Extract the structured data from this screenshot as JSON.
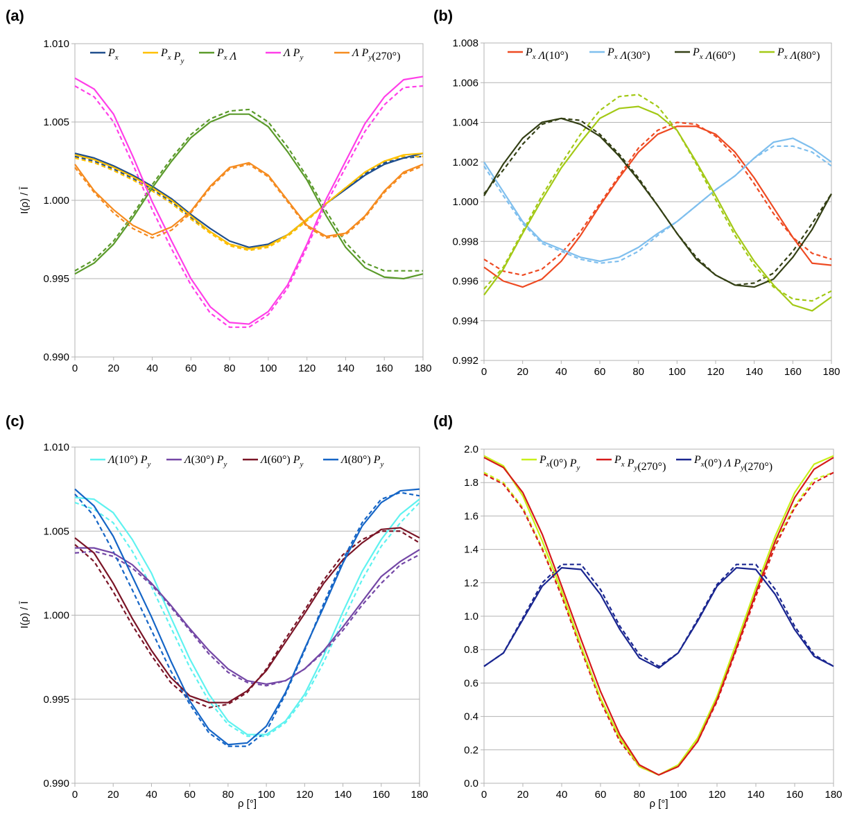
{
  "chart_data": [
    {
      "panel_label": "(a)",
      "type": "line",
      "xlabel": "",
      "ylabel": "I(ρ) / Ī",
      "xlim": [
        0,
        180
      ],
      "ylim": [
        0.99,
        1.01
      ],
      "x_ticks": [
        "0",
        "20",
        "40",
        "60",
        "80",
        "100",
        "120",
        "140",
        "160",
        "180"
      ],
      "y_ticks": [
        "0.990",
        "0.995",
        "1.000",
        "1.005",
        "1.010"
      ],
      "grid": "horizontal",
      "legend_position": "top",
      "legend_note": "solid = measured, dashed = predicted (no legend entry for style)",
      "x": [
        0,
        10,
        20,
        30,
        40,
        50,
        60,
        70,
        80,
        90,
        100,
        110,
        120,
        130,
        140,
        150,
        160,
        170,
        180
      ],
      "series": [
        {
          "name": "P_x",
          "color": "#1f4e8c",
          "solid": [
            1.003,
            1.0027,
            1.0022,
            1.0016,
            1.0009,
            1.0001,
            0.9991,
            0.9982,
            0.9974,
            0.997,
            0.9972,
            0.9978,
            0.9988,
            0.9998,
            1.0007,
            1.0016,
            1.0023,
            1.0027,
            1.003
          ],
          "dashed": [
            1.0028,
            1.0025,
            1.002,
            1.0014,
            1.0007,
            0.9999,
            0.9989,
            0.998,
            0.9972,
            0.9969,
            0.9971,
            0.9978,
            0.9988,
            0.9998,
            1.0008,
            1.0017,
            1.0024,
            1.0027,
            1.0028
          ]
        },
        {
          "name": "P_x P_y",
          "color": "#ffc000",
          "solid": [
            1.0029,
            1.0026,
            1.0021,
            1.0015,
            1.0008,
            1.0,
            0.999,
            0.998,
            0.9972,
            0.9969,
            0.9971,
            0.9978,
            0.9988,
            0.9998,
            1.0008,
            1.0018,
            1.0025,
            1.0029,
            1.003
          ],
          "dashed": [
            1.0027,
            1.0024,
            1.0019,
            1.0013,
            1.0006,
            0.9998,
            0.9988,
            0.9979,
            0.9971,
            0.9968,
            0.997,
            0.9977,
            0.9987,
            0.9998,
            1.0008,
            1.0018,
            1.0025,
            1.0028,
            1.0028
          ]
        },
        {
          "name": "P_x Λ",
          "color": "#5a9a2a",
          "solid": [
            0.9953,
            0.996,
            0.9972,
            0.9989,
            1.0008,
            1.0025,
            1.004,
            1.005,
            1.0055,
            1.0055,
            1.0047,
            1.0031,
            1.0013,
            0.999,
            0.997,
            0.9957,
            0.9951,
            0.995,
            0.9953
          ],
          "dashed": [
            0.9955,
            0.9962,
            0.9974,
            0.9991,
            1.001,
            1.0027,
            1.0042,
            1.0052,
            1.0057,
            1.0058,
            1.005,
            1.0034,
            1.0015,
            0.9993,
            0.9973,
            0.996,
            0.9955,
            0.9955,
            0.9955
          ]
        },
        {
          "name": "Λ P_y",
          "color": "#ff3ee8",
          "solid": [
            1.0078,
            1.0071,
            1.0055,
            1.0028,
            0.9999,
            0.9974,
            0.995,
            0.9932,
            0.9922,
            0.9921,
            0.9929,
            0.9946,
            0.9972,
            1.0001,
            1.0025,
            1.0049,
            1.0066,
            1.0077,
            1.0079
          ],
          "dashed": [
            1.0073,
            1.0066,
            1.005,
            1.0023,
            0.9994,
            0.9969,
            0.9946,
            0.9928,
            0.9919,
            0.9919,
            0.9927,
            0.9944,
            0.997,
            0.9998,
            1.0021,
            1.0044,
            1.0061,
            1.0072,
            1.0073
          ]
        },
        {
          "name": "Λ P_y(270°)",
          "color": "#f58b1f",
          "solid": [
            1.0023,
            1.0006,
            0.9994,
            0.9984,
            0.9978,
            0.9983,
            0.9993,
            1.0009,
            1.0021,
            1.0024,
            1.0016,
            1.0,
            0.9984,
            0.9977,
            0.9979,
            0.999,
            1.0006,
            1.0018,
            1.0023
          ],
          "dashed": [
            1.0021,
            1.0005,
            0.9992,
            0.9982,
            0.9976,
            0.9981,
            0.9992,
            1.0008,
            1.002,
            1.0023,
            1.0015,
            0.9999,
            0.9983,
            0.9976,
            0.9978,
            0.9989,
            1.0005,
            1.0017,
            1.0022
          ]
        }
      ]
    },
    {
      "panel_label": "(b)",
      "type": "line",
      "xlabel": "",
      "ylabel": "",
      "xlim": [
        0,
        180
      ],
      "ylim": [
        0.992,
        1.008
      ],
      "x_ticks": [
        "0",
        "20",
        "40",
        "60",
        "80",
        "100",
        "120",
        "140",
        "160",
        "180"
      ],
      "y_ticks": [
        "0.992",
        "0.994",
        "0.996",
        "0.998",
        "1.000",
        "1.002",
        "1.004",
        "1.006",
        "1.008"
      ],
      "grid": "horizontal",
      "legend_position": "top",
      "x": [
        0,
        10,
        20,
        30,
        40,
        50,
        60,
        70,
        80,
        90,
        100,
        110,
        120,
        130,
        140,
        150,
        160,
        170,
        180
      ],
      "series": [
        {
          "name": "P_x Λ(10°)",
          "color": "#ee4a22",
          "solid": [
            0.9967,
            0.996,
            0.9957,
            0.9961,
            0.997,
            0.9983,
            0.9998,
            1.0012,
            1.0025,
            1.0034,
            1.0038,
            1.0038,
            1.0034,
            1.0025,
            1.0012,
            0.9997,
            0.9982,
            0.9969,
            0.9968
          ],
          "dashed": [
            0.9971,
            0.9965,
            0.9963,
            0.9966,
            0.9974,
            0.9985,
            0.9999,
            1.0013,
            1.0027,
            1.0036,
            1.004,
            1.0039,
            1.0033,
            1.0023,
            1.0009,
            0.9994,
            0.9982,
            0.9974,
            0.9971
          ]
        },
        {
          "name": "P_x Λ(30°)",
          "color": "#7fbfee",
          "solid": [
            1.002,
            1.0005,
            0.999,
            0.998,
            0.9976,
            0.9972,
            0.997,
            0.9972,
            0.9977,
            0.9984,
            0.999,
            0.9998,
            1.0006,
            1.0013,
            1.0022,
            1.003,
            1.0032,
            1.0027,
            1.002
          ],
          "dashed": [
            1.0018,
            1.0003,
            0.9989,
            0.9979,
            0.9975,
            0.9971,
            0.9969,
            0.997,
            0.9975,
            0.9983,
            0.999,
            0.9998,
            1.0006,
            1.0013,
            1.0022,
            1.0028,
            1.0028,
            1.0025,
            1.0018
          ]
        },
        {
          "name": "P_x Λ(60°)",
          "color": "#333f14",
          "solid": [
            1.0003,
            1.0019,
            1.0032,
            1.004,
            1.0042,
            1.0039,
            1.0033,
            1.0023,
            1.0011,
            0.9998,
            0.9984,
            0.9971,
            0.9963,
            0.9958,
            0.9957,
            0.9961,
            0.9972,
            0.9986,
            1.0004
          ],
          "dashed": [
            1.0004,
            1.0016,
            1.0029,
            1.0039,
            1.0042,
            1.0041,
            1.0034,
            1.0024,
            1.0012,
            0.9998,
            0.9984,
            0.9972,
            0.9963,
            0.9958,
            0.9959,
            0.9964,
            0.9975,
            0.9989,
            1.0004
          ]
        },
        {
          "name": "P_x Λ(80°)",
          "color": "#a3c916",
          "solid": [
            0.9953,
            0.9966,
            0.9984,
            1.0001,
            1.0017,
            1.003,
            1.0042,
            1.0047,
            1.0048,
            1.0044,
            1.0036,
            1.002,
            1.0003,
            0.9985,
            0.997,
            0.9958,
            0.9948,
            0.9945,
            0.9952
          ],
          "dashed": [
            0.9956,
            0.9967,
            0.9985,
            1.0003,
            1.0019,
            1.0034,
            1.0046,
            1.0053,
            1.0054,
            1.0048,
            1.0036,
            1.0019,
            1.0001,
            0.9983,
            0.9968,
            0.9957,
            0.9951,
            0.995,
            0.9955
          ]
        }
      ]
    },
    {
      "panel_label": "(c)",
      "type": "line",
      "xlabel": "ρ [°]",
      "ylabel": "I(ρ) / Ī",
      "xlim": [
        0,
        180
      ],
      "ylim": [
        0.99,
        1.01
      ],
      "x_ticks": [
        "0",
        "20",
        "40",
        "60",
        "80",
        "100",
        "120",
        "140",
        "160",
        "180"
      ],
      "y_ticks": [
        "0.990",
        "0.995",
        "1.000",
        "1.005",
        "1.010"
      ],
      "grid": "horizontal",
      "legend_position": "top",
      "x": [
        0,
        10,
        20,
        30,
        40,
        50,
        60,
        70,
        80,
        90,
        100,
        110,
        120,
        130,
        140,
        150,
        160,
        170,
        180
      ],
      "series": [
        {
          "name": "Λ(10°) P_y",
          "color": "#5ff2f0",
          "solid": [
            1.007,
            1.0069,
            1.0061,
            1.0045,
            1.0025,
            0.9999,
            0.9974,
            0.9953,
            0.9937,
            0.9929,
            0.9929,
            0.9937,
            0.9953,
            0.9976,
            1.0002,
            1.0026,
            1.0045,
            1.006,
            1.0069
          ],
          "dashed": [
            1.0067,
            1.0063,
            1.0055,
            1.0038,
            1.0017,
            0.9993,
            0.9969,
            0.9949,
            0.9935,
            0.9928,
            0.9928,
            0.9936,
            0.9951,
            0.9972,
            0.9997,
            1.0021,
            1.0041,
            1.0055,
            1.0067
          ]
        },
        {
          "name": "Λ(30°) P_y",
          "color": "#7447a6",
          "solid": [
            1.004,
            1.004,
            1.0037,
            1.003,
            1.0019,
            1.0006,
            0.9992,
            0.9979,
            0.9968,
            0.9961,
            0.9959,
            0.9961,
            0.9968,
            0.9979,
            0.9993,
            1.0008,
            1.0023,
            1.0032,
            1.0039
          ],
          "dashed": [
            1.0037,
            1.0038,
            1.0035,
            1.0028,
            1.0018,
            1.0005,
            0.9991,
            0.9977,
            0.9966,
            0.996,
            0.9958,
            0.9961,
            0.9968,
            0.9978,
            0.9991,
            1.0006,
            1.0019,
            1.003,
            1.0036
          ]
        },
        {
          "name": "Λ(60°) P_y",
          "color": "#7a1426",
          "solid": [
            1.0046,
            1.0037,
            1.0019,
            0.9998,
            0.9979,
            0.9963,
            0.9952,
            0.9948,
            0.9948,
            0.9955,
            0.9967,
            0.9984,
            1.0001,
            1.0019,
            1.0033,
            1.0043,
            1.0051,
            1.0052,
            1.0046
          ],
          "dashed": [
            1.0042,
            1.0032,
            1.0014,
            0.9994,
            0.9976,
            0.996,
            0.995,
            0.9945,
            0.9947,
            0.9954,
            0.9968,
            0.9986,
            1.0003,
            1.0021,
            1.0036,
            1.0045,
            1.005,
            1.005,
            1.0043
          ]
        },
        {
          "name": "Λ(80°) P_y",
          "color": "#1565c6",
          "solid": [
            1.0075,
            1.0065,
            1.0047,
            1.0023,
            0.9999,
            0.9973,
            0.9949,
            0.9932,
            0.9923,
            0.9924,
            0.9934,
            0.9954,
            0.998,
            1.0005,
            1.0031,
            1.0053,
            1.0067,
            1.0074,
            1.0075
          ],
          "dashed": [
            1.0072,
            1.0059,
            1.0038,
            1.0015,
            0.9991,
            0.9967,
            0.9947,
            0.993,
            0.9922,
            0.9922,
            0.9931,
            0.9953,
            0.9979,
            1.0007,
            1.0033,
            1.0055,
            1.0069,
            1.0073,
            1.0071
          ]
        }
      ]
    },
    {
      "panel_label": "(d)",
      "type": "line",
      "xlabel": "ρ [°]",
      "ylabel": "",
      "xlim": [
        0,
        180
      ],
      "ylim": [
        0.0,
        2.0
      ],
      "x_ticks": [
        "0",
        "20",
        "40",
        "60",
        "80",
        "100",
        "120",
        "140",
        "160",
        "180"
      ],
      "y_ticks": [
        "0.0",
        "0.2",
        "0.4",
        "0.6",
        "0.8",
        "1.0",
        "1.2",
        "1.4",
        "1.6",
        "1.8",
        "2.0"
      ],
      "grid": "horizontal",
      "legend_position": "top",
      "x": [
        0,
        10,
        20,
        30,
        40,
        50,
        60,
        70,
        80,
        90,
        100,
        110,
        120,
        130,
        140,
        150,
        160,
        170,
        180
      ],
      "series": [
        {
          "name": "P_x(0°) P_y",
          "color": "#c8f01a",
          "solid": [
            1.96,
            1.9,
            1.72,
            1.45,
            1.15,
            0.82,
            0.51,
            0.27,
            0.1,
            0.05,
            0.11,
            0.27,
            0.52,
            0.84,
            1.17,
            1.48,
            1.74,
            1.91,
            1.96
          ],
          "dashed": [
            1.86,
            1.8,
            1.65,
            1.41,
            1.13,
            0.81,
            0.5,
            0.26,
            0.1,
            0.05,
            0.1,
            0.26,
            0.51,
            0.82,
            1.15,
            1.44,
            1.66,
            1.82,
            1.86
          ]
        },
        {
          "name": "P_x P_y(270°)",
          "color": "#d61a1a",
          "solid": [
            1.95,
            1.89,
            1.74,
            1.49,
            1.18,
            0.86,
            0.55,
            0.29,
            0.11,
            0.05,
            0.1,
            0.25,
            0.5,
            0.81,
            1.14,
            1.45,
            1.71,
            1.88,
            1.95
          ],
          "dashed": [
            1.85,
            1.79,
            1.64,
            1.4,
            1.12,
            0.8,
            0.49,
            0.25,
            0.1,
            0.05,
            0.1,
            0.25,
            0.49,
            0.8,
            1.12,
            1.42,
            1.65,
            1.8,
            1.86
          ]
        },
        {
          "name": "P_x(0°) Λ P_y(270°)",
          "color": "#1a2690",
          "solid": [
            0.7,
            0.78,
            0.98,
            1.18,
            1.29,
            1.28,
            1.13,
            0.92,
            0.75,
            0.69,
            0.78,
            0.97,
            1.18,
            1.29,
            1.28,
            1.13,
            0.92,
            0.76,
            0.7
          ],
          "dashed": [
            0.7,
            0.78,
            0.99,
            1.2,
            1.31,
            1.31,
            1.16,
            0.94,
            0.77,
            0.7,
            0.78,
            0.98,
            1.19,
            1.31,
            1.31,
            1.16,
            0.94,
            0.77,
            0.7
          ]
        }
      ]
    }
  ]
}
